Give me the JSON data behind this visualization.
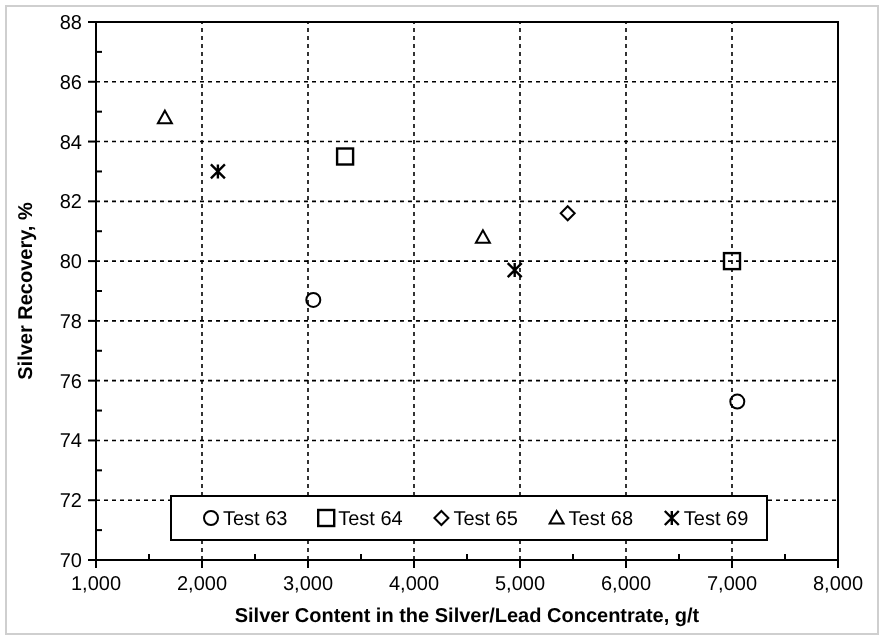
{
  "chart_data": {
    "type": "scatter",
    "xlabel": "Silver Content in the Silver/Lead Concentrate, g/t",
    "ylabel": "Silver Recovery, %",
    "xlim": [
      1000,
      8000
    ],
    "ylim": [
      70,
      88
    ],
    "xticks": [
      {
        "value": 1000,
        "label": "1,000"
      },
      {
        "value": 2000,
        "label": "2,000"
      },
      {
        "value": 3000,
        "label": "3,000"
      },
      {
        "value": 4000,
        "label": "4,000"
      },
      {
        "value": 5000,
        "label": "5,000"
      },
      {
        "value": 6000,
        "label": "6,000"
      },
      {
        "value": 7000,
        "label": "7,000"
      },
      {
        "value": 8000,
        "label": "8,000"
      }
    ],
    "yticks": [
      70,
      72,
      74,
      76,
      78,
      80,
      82,
      84,
      86,
      88
    ],
    "grid": true,
    "legend": "bottom",
    "series": [
      {
        "name": "Test 63",
        "color": "#000000",
        "marker": "circle",
        "x": [
          3050,
          7050
        ],
        "values": [
          78.7,
          75.3
        ]
      },
      {
        "name": "Test 64",
        "color": "#000000",
        "marker": "square",
        "x": [
          3350,
          7000
        ],
        "values": [
          83.5,
          80.0
        ]
      },
      {
        "name": "Test 65",
        "color": "#000000",
        "marker": "diamond",
        "x": [
          5450
        ],
        "values": [
          81.6
        ]
      },
      {
        "name": "Test 68",
        "color": "#000000",
        "marker": "triangle",
        "x": [
          1650,
          4650
        ],
        "values": [
          84.8,
          80.8
        ]
      },
      {
        "name": "Test 69",
        "color": "#000000",
        "marker": "cross",
        "x": [
          2150,
          4950
        ],
        "values": [
          83.0,
          79.7
        ]
      }
    ]
  }
}
